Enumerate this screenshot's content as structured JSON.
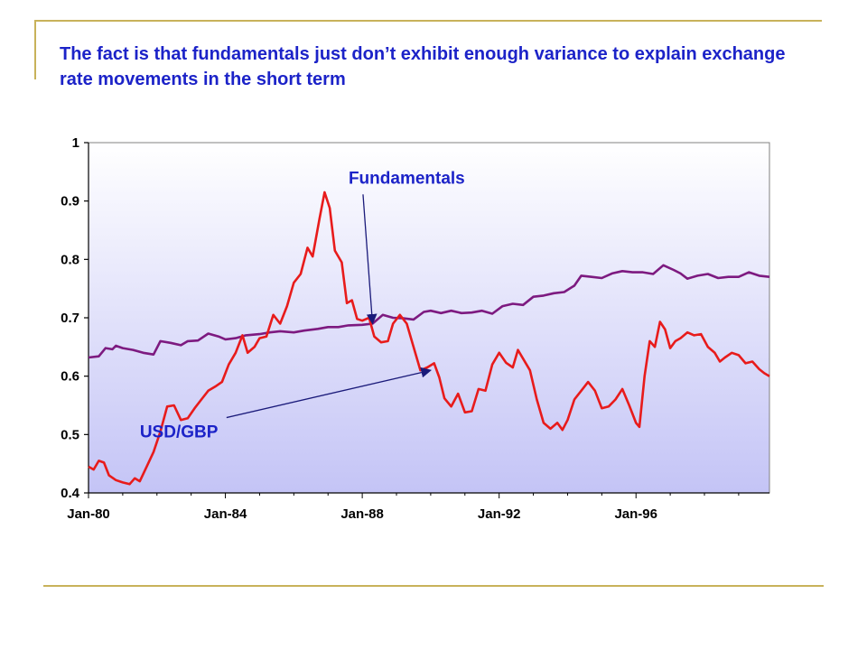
{
  "slide": {
    "title": "The fact is that fundamentals just don’t exhibit enough variance to explain exchange rate movements in the short term"
  },
  "chart_data": {
    "type": "line",
    "title": "",
    "xlabel": "",
    "ylabel": "",
    "x_tick_labels": [
      "Jan-80",
      "Jan-84",
      "Jan-88",
      "Jan-92",
      "Jan-96"
    ],
    "y_tick_labels": [
      "0.4",
      "0.5",
      "0.6",
      "0.7",
      "0.8",
      "0.9",
      "1"
    ],
    "xlim": [
      1980.0,
      1999.9
    ],
    "ylim": [
      0.4,
      1.0
    ],
    "grid": false,
    "legend": "none",
    "series": [
      {
        "name": "Fundamentals",
        "color": "#7d1a80",
        "points": [
          [
            1980.0,
            0.632
          ],
          [
            1980.3,
            0.634
          ],
          [
            1980.5,
            0.648
          ],
          [
            1980.7,
            0.646
          ],
          [
            1980.8,
            0.652
          ],
          [
            1981.0,
            0.648
          ],
          [
            1981.3,
            0.645
          ],
          [
            1981.6,
            0.64
          ],
          [
            1981.9,
            0.637
          ],
          [
            1982.1,
            0.66
          ],
          [
            1982.4,
            0.657
          ],
          [
            1982.7,
            0.653
          ],
          [
            1982.9,
            0.66
          ],
          [
            1983.2,
            0.661
          ],
          [
            1983.5,
            0.673
          ],
          [
            1983.8,
            0.668
          ],
          [
            1984.0,
            0.663
          ],
          [
            1984.3,
            0.665
          ],
          [
            1984.6,
            0.67
          ],
          [
            1985.0,
            0.672
          ],
          [
            1985.3,
            0.675
          ],
          [
            1985.6,
            0.677
          ],
          [
            1986.0,
            0.675
          ],
          [
            1986.3,
            0.678
          ],
          [
            1986.7,
            0.681
          ],
          [
            1987.0,
            0.684
          ],
          [
            1987.3,
            0.684
          ],
          [
            1987.6,
            0.687
          ],
          [
            1988.0,
            0.688
          ],
          [
            1988.3,
            0.69
          ],
          [
            1988.6,
            0.705
          ],
          [
            1988.9,
            0.7
          ],
          [
            1989.2,
            0.699
          ],
          [
            1989.5,
            0.697
          ],
          [
            1989.8,
            0.71
          ],
          [
            1990.0,
            0.712
          ],
          [
            1990.3,
            0.708
          ],
          [
            1990.6,
            0.712
          ],
          [
            1990.9,
            0.708
          ],
          [
            1991.2,
            0.709
          ],
          [
            1991.5,
            0.712
          ],
          [
            1991.8,
            0.707
          ],
          [
            1992.1,
            0.72
          ],
          [
            1992.4,
            0.724
          ],
          [
            1992.7,
            0.722
          ],
          [
            1993.0,
            0.736
          ],
          [
            1993.3,
            0.738
          ],
          [
            1993.6,
            0.742
          ],
          [
            1993.9,
            0.744
          ],
          [
            1994.2,
            0.755
          ],
          [
            1994.4,
            0.772
          ],
          [
            1994.7,
            0.77
          ],
          [
            1995.0,
            0.768
          ],
          [
            1995.3,
            0.776
          ],
          [
            1995.6,
            0.78
          ],
          [
            1995.9,
            0.778
          ],
          [
            1996.2,
            0.778
          ],
          [
            1996.5,
            0.775
          ],
          [
            1996.8,
            0.79
          ],
          [
            1997.1,
            0.782
          ],
          [
            1997.3,
            0.776
          ],
          [
            1997.5,
            0.767
          ],
          [
            1997.8,
            0.772
          ],
          [
            1998.1,
            0.775
          ],
          [
            1998.4,
            0.768
          ],
          [
            1998.7,
            0.77
          ],
          [
            1999.0,
            0.77
          ],
          [
            1999.3,
            0.778
          ],
          [
            1999.6,
            0.772
          ],
          [
            1999.9,
            0.77
          ]
        ]
      },
      {
        "name": "USD/GBP",
        "color": "#e81b1b",
        "points": [
          [
            1980.0,
            0.445
          ],
          [
            1980.15,
            0.44
          ],
          [
            1980.3,
            0.455
          ],
          [
            1980.45,
            0.452
          ],
          [
            1980.6,
            0.43
          ],
          [
            1980.8,
            0.422
          ],
          [
            1981.0,
            0.418
          ],
          [
            1981.2,
            0.415
          ],
          [
            1981.35,
            0.425
          ],
          [
            1981.5,
            0.42
          ],
          [
            1981.7,
            0.445
          ],
          [
            1981.9,
            0.47
          ],
          [
            1982.1,
            0.505
          ],
          [
            1982.3,
            0.548
          ],
          [
            1982.5,
            0.55
          ],
          [
            1982.7,
            0.525
          ],
          [
            1982.9,
            0.528
          ],
          [
            1983.1,
            0.545
          ],
          [
            1983.3,
            0.56
          ],
          [
            1983.5,
            0.575
          ],
          [
            1983.7,
            0.582
          ],
          [
            1983.9,
            0.59
          ],
          [
            1984.1,
            0.62
          ],
          [
            1984.3,
            0.64
          ],
          [
            1984.5,
            0.67
          ],
          [
            1984.65,
            0.64
          ],
          [
            1984.85,
            0.65
          ],
          [
            1985.0,
            0.665
          ],
          [
            1985.2,
            0.668
          ],
          [
            1985.4,
            0.705
          ],
          [
            1985.6,
            0.69
          ],
          [
            1985.8,
            0.72
          ],
          [
            1986.0,
            0.76
          ],
          [
            1986.2,
            0.775
          ],
          [
            1986.4,
            0.82
          ],
          [
            1986.55,
            0.805
          ],
          [
            1986.75,
            0.87
          ],
          [
            1986.9,
            0.915
          ],
          [
            1987.05,
            0.888
          ],
          [
            1987.2,
            0.815
          ],
          [
            1987.4,
            0.795
          ],
          [
            1987.55,
            0.725
          ],
          [
            1987.7,
            0.73
          ],
          [
            1987.85,
            0.698
          ],
          [
            1988.0,
            0.695
          ],
          [
            1988.2,
            0.7
          ],
          [
            1988.35,
            0.668
          ],
          [
            1988.55,
            0.658
          ],
          [
            1988.75,
            0.66
          ],
          [
            1988.9,
            0.69
          ],
          [
            1989.1,
            0.705
          ],
          [
            1989.3,
            0.69
          ],
          [
            1989.5,
            0.65
          ],
          [
            1989.7,
            0.61
          ],
          [
            1989.9,
            0.615
          ],
          [
            1990.1,
            0.622
          ],
          [
            1990.25,
            0.598
          ],
          [
            1990.4,
            0.562
          ],
          [
            1990.6,
            0.548
          ],
          [
            1990.8,
            0.57
          ],
          [
            1991.0,
            0.538
          ],
          [
            1991.2,
            0.54
          ],
          [
            1991.4,
            0.578
          ],
          [
            1991.6,
            0.575
          ],
          [
            1991.8,
            0.62
          ],
          [
            1992.0,
            0.64
          ],
          [
            1992.2,
            0.623
          ],
          [
            1992.4,
            0.615
          ],
          [
            1992.55,
            0.645
          ],
          [
            1992.7,
            0.63
          ],
          [
            1992.9,
            0.61
          ],
          [
            1993.1,
            0.56
          ],
          [
            1993.3,
            0.52
          ],
          [
            1993.5,
            0.51
          ],
          [
            1993.7,
            0.52
          ],
          [
            1993.85,
            0.508
          ],
          [
            1994.0,
            0.525
          ],
          [
            1994.2,
            0.56
          ],
          [
            1994.4,
            0.575
          ],
          [
            1994.6,
            0.59
          ],
          [
            1994.8,
            0.575
          ],
          [
            1995.0,
            0.545
          ],
          [
            1995.2,
            0.548
          ],
          [
            1995.4,
            0.56
          ],
          [
            1995.6,
            0.578
          ],
          [
            1995.8,
            0.55
          ],
          [
            1996.0,
            0.52
          ],
          [
            1996.1,
            0.513
          ],
          [
            1996.25,
            0.6
          ],
          [
            1996.4,
            0.66
          ],
          [
            1996.55,
            0.65
          ],
          [
            1996.7,
            0.693
          ],
          [
            1996.85,
            0.68
          ],
          [
            1997.0,
            0.648
          ],
          [
            1997.15,
            0.66
          ],
          [
            1997.3,
            0.665
          ],
          [
            1997.5,
            0.675
          ],
          [
            1997.7,
            0.67
          ],
          [
            1997.9,
            0.672
          ],
          [
            1998.1,
            0.65
          ],
          [
            1998.3,
            0.64
          ],
          [
            1998.45,
            0.625
          ],
          [
            1998.6,
            0.632
          ],
          [
            1998.8,
            0.64
          ],
          [
            1999.0,
            0.636
          ],
          [
            1999.2,
            0.622
          ],
          [
            1999.4,
            0.625
          ],
          [
            1999.6,
            0.612
          ],
          [
            1999.75,
            0.605
          ],
          [
            1999.9,
            0.6
          ]
        ]
      }
    ],
    "annotations": [
      {
        "text": "Fundamentals",
        "series": "Fundamentals",
        "label_at": [
          1987.6,
          0.93
        ],
        "arrow_to": [
          1988.3,
          0.69
        ]
      },
      {
        "text": "USD/GBP",
        "series": "USD/GBP",
        "label_at": [
          1981.5,
          0.495
        ],
        "arrow_to": [
          1990.0,
          0.61
        ]
      }
    ]
  }
}
